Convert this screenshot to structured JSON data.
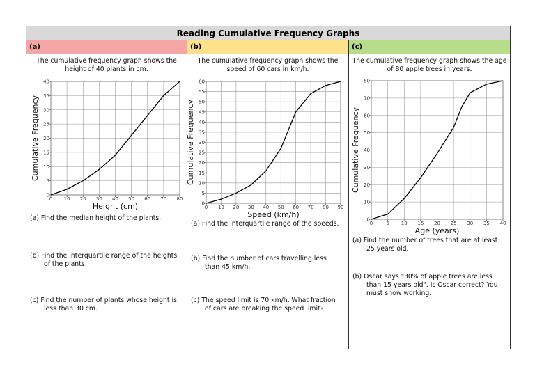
{
  "worksheet": {
    "title": "Reading Cumulative Frequency Graphs",
    "columns": [
      {
        "label": "(a)",
        "color": "#f4a6a6",
        "intro": "The cumulative frequency graph shows the height of 40 plants in cm.",
        "questions": [
          "(a) Find the median height of the plants.",
          "(b) Find the interquartile range of the heights of the plants.",
          "(c) Find the number of plants whose height is less than 30 cm."
        ]
      },
      {
        "label": "(b)",
        "color": "#ffe28a",
        "intro": "The cumulative frequency graph shows the speed of 60 cars in km/h.",
        "questions": [
          "(a) Find the interquartile range of the speeds.",
          "(b) Find the number of cars travelling less than 45 km/h.",
          "(c) The speed limit is 70 km/h. What fraction of cars are breaking the speed limit?"
        ]
      },
      {
        "label": "(c)",
        "color": "#b7dd8a",
        "intro": "The cumulative frequency graph shows the age of 80 apple trees in years.",
        "questions": [
          "(a) Find the number of trees that are at least 25 years old.",
          "(b) Oscar says \"30% of apple trees are less than 15 years old\". Is Oscar correct? You must show working."
        ]
      }
    ]
  },
  "chart_data": [
    {
      "type": "line",
      "xlabel": "Height (cm)",
      "ylabel": "Cumulative Frequency",
      "x": [
        0,
        10,
        20,
        30,
        40,
        50,
        60,
        70,
        80
      ],
      "values": [
        0,
        2,
        5,
        9,
        14,
        21,
        28,
        35,
        40
      ],
      "color": "#000000",
      "xlim": [
        0,
        80
      ],
      "ylim": [
        0,
        40
      ],
      "xticks": [
        0,
        10,
        20,
        30,
        40,
        50,
        60,
        70,
        80
      ],
      "yticks": [
        0,
        5,
        10,
        15,
        20,
        25,
        30,
        35,
        40
      ],
      "grid": true
    },
    {
      "type": "line",
      "xlabel": "Speed (km/h)",
      "ylabel": "Cumulative Frequency",
      "x": [
        0,
        10,
        20,
        30,
        40,
        50,
        60,
        70,
        80,
        90
      ],
      "values": [
        0,
        2,
        5,
        9,
        16,
        27,
        45,
        54,
        58,
        60
      ],
      "color": "#000000",
      "xlim": [
        0,
        90
      ],
      "ylim": [
        0,
        60
      ],
      "xticks": [
        0,
        10,
        20,
        30,
        40,
        50,
        60,
        70,
        80,
        90
      ],
      "yticks": [
        0,
        5,
        10,
        15,
        20,
        25,
        30,
        35,
        40,
        45,
        50,
        55,
        60
      ],
      "grid": true
    },
    {
      "type": "line",
      "xlabel": "Age (years)",
      "ylabel": "Cumulative Frequency",
      "x": [
        0,
        5,
        10,
        15,
        20,
        25,
        27.5,
        30,
        35,
        40
      ],
      "values": [
        0,
        3,
        12,
        24,
        38,
        53,
        65,
        73,
        78,
        80
      ],
      "color": "#000000",
      "xlim": [
        0,
        40
      ],
      "ylim": [
        0,
        80
      ],
      "xticks": [
        0,
        5,
        10,
        15,
        20,
        25,
        30,
        35,
        40
      ],
      "yticks": [
        0,
        10,
        20,
        30,
        40,
        50,
        60,
        70,
        80
      ],
      "grid": true
    }
  ]
}
